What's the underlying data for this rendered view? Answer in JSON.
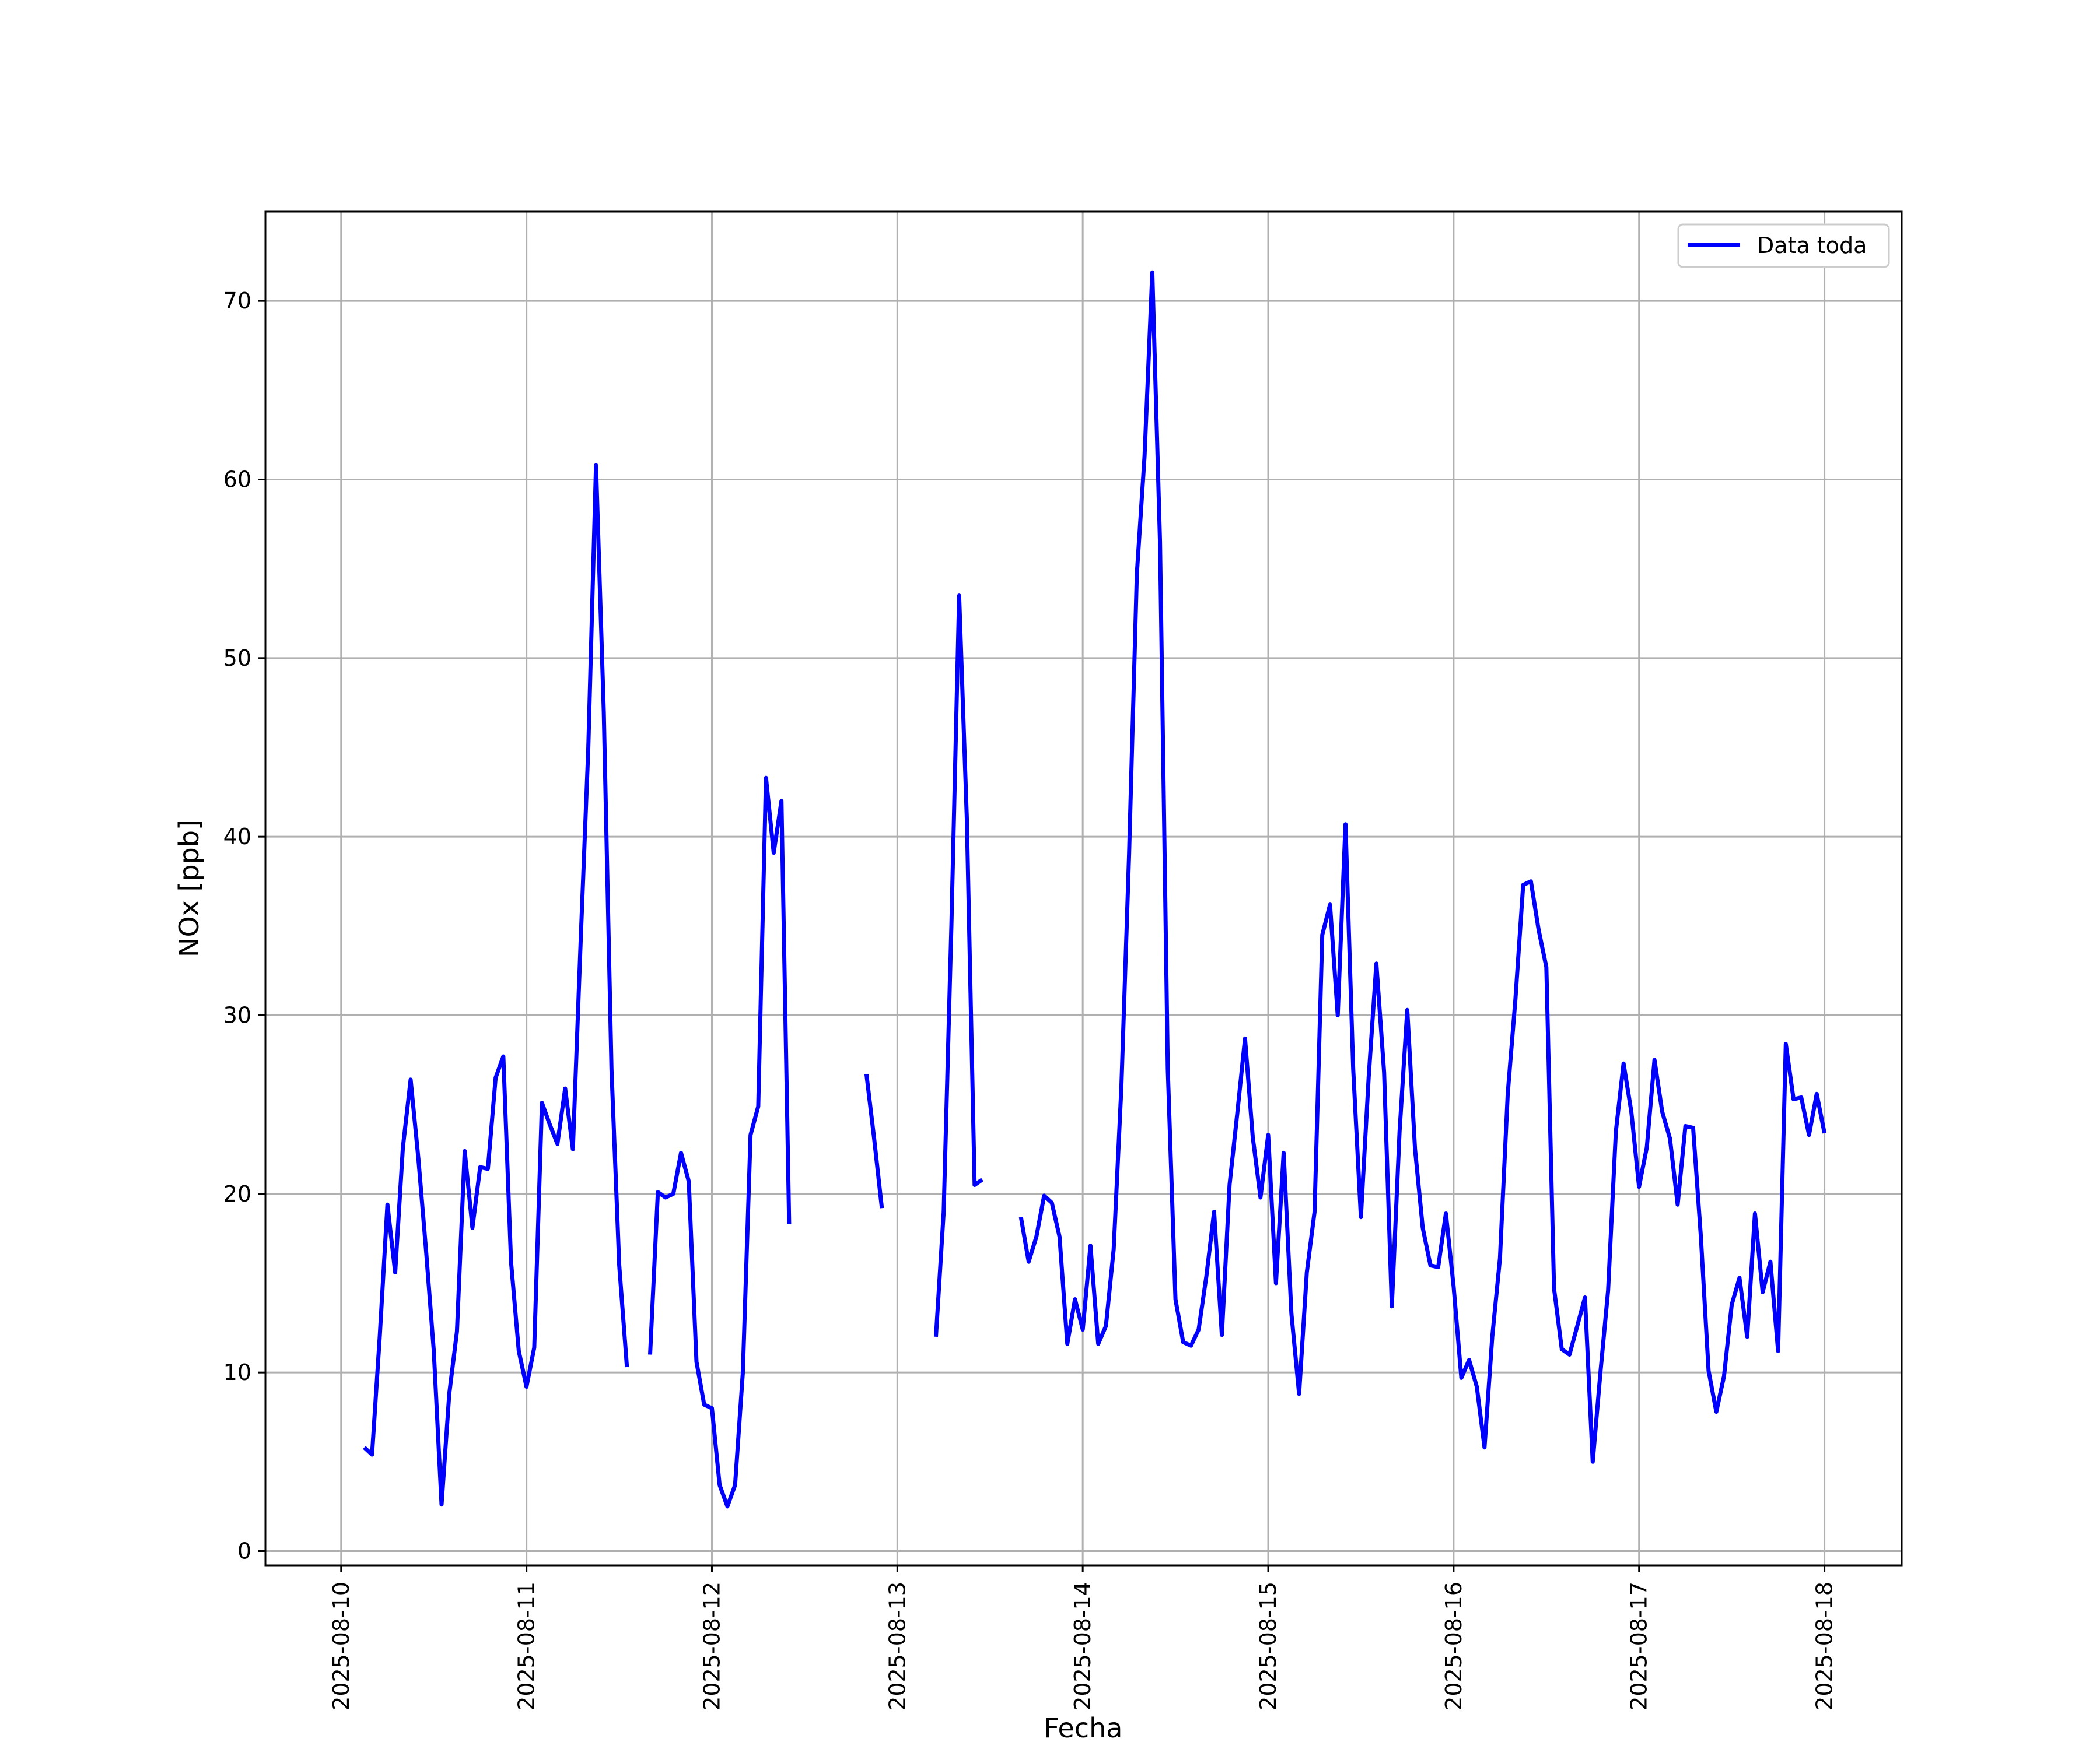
{
  "chart_data": {
    "type": "line",
    "xlabel": "Fecha",
    "ylabel": "NOx [ppb]",
    "ylim": [
      -0.8,
      75
    ],
    "xlim": [
      "2025-08-09T14:12",
      "2025-08-18T10:00"
    ],
    "grid": true,
    "legend_position": "top-right",
    "line_color": "#0000ff",
    "x_ticks": [
      "2025-08-10",
      "2025-08-11",
      "2025-08-12",
      "2025-08-13",
      "2025-08-14",
      "2025-08-15",
      "2025-08-16",
      "2025-08-17",
      "2025-08-18"
    ],
    "y_ticks": [
      0,
      10,
      20,
      30,
      40,
      50,
      60,
      70
    ],
    "series": [
      {
        "name": "Data toda",
        "points": [
          [
            "2025-08-10T03:00",
            5.8
          ],
          [
            "2025-08-10T04:00",
            5.4
          ],
          [
            "2025-08-10T05:00",
            12.0
          ],
          [
            "2025-08-10T06:00",
            19.4
          ],
          [
            "2025-08-10T07:00",
            15.6
          ],
          [
            "2025-08-10T08:00",
            22.6
          ],
          [
            "2025-08-10T09:00",
            26.4
          ],
          [
            "2025-08-10T10:00",
            22.0
          ],
          [
            "2025-08-10T11:00",
            16.8
          ],
          [
            "2025-08-10T12:00",
            11.2
          ],
          [
            "2025-08-10T13:00",
            2.6
          ],
          [
            "2025-08-10T14:00",
            8.8
          ],
          [
            "2025-08-10T15:00",
            12.3
          ],
          [
            "2025-08-10T16:00",
            22.4
          ],
          [
            "2025-08-10T17:00",
            18.1
          ],
          [
            "2025-08-10T18:00",
            21.5
          ],
          [
            "2025-08-10T19:00",
            21.4
          ],
          [
            "2025-08-10T20:00",
            26.5
          ],
          [
            "2025-08-10T21:00",
            27.7
          ],
          [
            "2025-08-10T22:00",
            16.2
          ],
          [
            "2025-08-10T23:00",
            11.2
          ],
          [
            "2025-08-11T00:00",
            9.2
          ],
          [
            "2025-08-11T01:00",
            11.4
          ],
          [
            "2025-08-11T02:00",
            25.1
          ],
          [
            "2025-08-11T03:00",
            23.9
          ],
          [
            "2025-08-11T04:00",
            22.8
          ],
          [
            "2025-08-11T05:00",
            25.9
          ],
          [
            "2025-08-11T06:00",
            22.5
          ],
          [
            "2025-08-11T07:00",
            34.0
          ],
          [
            "2025-08-11T08:00",
            45.0
          ],
          [
            "2025-08-11T09:00",
            60.8
          ],
          [
            "2025-08-11T10:00",
            47.0
          ],
          [
            "2025-08-11T11:00",
            27.0
          ],
          [
            "2025-08-11T12:00",
            16.0
          ],
          [
            "2025-08-11T13:00",
            10.3
          ],
          null,
          [
            "2025-08-11T16:00",
            11.0
          ],
          [
            "2025-08-11T17:00",
            20.1
          ],
          [
            "2025-08-11T18:00",
            19.8
          ],
          [
            "2025-08-11T19:00",
            20.0
          ],
          [
            "2025-08-11T20:00",
            22.3
          ],
          [
            "2025-08-11T21:00",
            20.7
          ],
          [
            "2025-08-11T22:00",
            10.6
          ],
          [
            "2025-08-11T23:00",
            8.2
          ],
          [
            "2025-08-12T00:00",
            8.0
          ],
          [
            "2025-08-12T01:00",
            3.7
          ],
          [
            "2025-08-12T02:00",
            2.5
          ],
          [
            "2025-08-12T03:00",
            3.7
          ],
          [
            "2025-08-12T04:00",
            10.0
          ],
          [
            "2025-08-12T05:00",
            23.3
          ],
          [
            "2025-08-12T06:00",
            24.9
          ],
          [
            "2025-08-12T07:00",
            43.3
          ],
          [
            "2025-08-12T08:00",
            39.1
          ],
          [
            "2025-08-12T09:00",
            42.0
          ],
          [
            "2025-08-12T10:00",
            18.3
          ],
          null,
          [
            "2025-08-12T20:00",
            26.7
          ],
          [
            "2025-08-12T21:00",
            23.1
          ],
          [
            "2025-08-12T22:00",
            19.2
          ],
          null,
          [
            "2025-08-13T05:00",
            12.0
          ],
          [
            "2025-08-13T06:00",
            19.0
          ],
          [
            "2025-08-13T07:00",
            35.0
          ],
          [
            "2025-08-13T08:00",
            53.5
          ],
          [
            "2025-08-13T09:00",
            41.0
          ],
          [
            "2025-08-13T10:00",
            20.5
          ],
          [
            "2025-08-13T11:00",
            20.8
          ],
          null,
          [
            "2025-08-13T16:00",
            18.7
          ],
          [
            "2025-08-13T17:00",
            16.2
          ],
          [
            "2025-08-13T18:00",
            17.6
          ],
          [
            "2025-08-13T19:00",
            19.9
          ],
          [
            "2025-08-13T20:00",
            19.5
          ],
          [
            "2025-08-13T21:00",
            17.6
          ],
          [
            "2025-08-13T22:00",
            11.6
          ],
          [
            "2025-08-13T23:00",
            14.1
          ],
          [
            "2025-08-14T00:00",
            12.4
          ],
          [
            "2025-08-14T01:00",
            17.1
          ],
          [
            "2025-08-14T02:00",
            11.6
          ],
          [
            "2025-08-14T03:00",
            12.6
          ],
          [
            "2025-08-14T04:00",
            16.9
          ],
          [
            "2025-08-14T05:00",
            26.0
          ],
          [
            "2025-08-14T06:00",
            39.0
          ],
          [
            "2025-08-14T07:00",
            54.7
          ],
          [
            "2025-08-14T08:00",
            61.3
          ],
          [
            "2025-08-14T09:00",
            71.6
          ],
          [
            "2025-08-14T10:00",
            56.5
          ],
          [
            "2025-08-14T11:00",
            27.0
          ],
          [
            "2025-08-14T12:00",
            14.1
          ],
          [
            "2025-08-14T13:00",
            11.7
          ],
          [
            "2025-08-14T14:00",
            11.5
          ],
          [
            "2025-08-14T15:00",
            12.4
          ],
          [
            "2025-08-14T16:00",
            15.4
          ],
          [
            "2025-08-14T17:00",
            19.0
          ],
          [
            "2025-08-14T18:00",
            12.1
          ],
          [
            "2025-08-14T19:00",
            20.5
          ],
          [
            "2025-08-14T20:00",
            24.5
          ],
          [
            "2025-08-14T21:00",
            28.7
          ],
          [
            "2025-08-14T22:00",
            23.2
          ],
          [
            "2025-08-14T23:00",
            19.8
          ],
          [
            "2025-08-15T00:00",
            23.3
          ],
          [
            "2025-08-15T01:00",
            15.0
          ],
          [
            "2025-08-15T02:00",
            22.3
          ],
          [
            "2025-08-15T03:00",
            13.3
          ],
          [
            "2025-08-15T04:00",
            8.8
          ],
          [
            "2025-08-15T05:00",
            15.6
          ],
          [
            "2025-08-15T06:00",
            19.0
          ],
          [
            "2025-08-15T07:00",
            34.5
          ],
          [
            "2025-08-15T08:00",
            36.2
          ],
          [
            "2025-08-15T09:00",
            30.0
          ],
          [
            "2025-08-15T10:00",
            40.7
          ],
          [
            "2025-08-15T11:00",
            27.0
          ],
          [
            "2025-08-15T12:00",
            18.7
          ],
          [
            "2025-08-15T13:00",
            26.5
          ],
          [
            "2025-08-15T14:00",
            32.9
          ],
          [
            "2025-08-15T15:00",
            26.8
          ],
          [
            "2025-08-15T16:00",
            13.7
          ],
          [
            "2025-08-15T17:00",
            23.5
          ],
          [
            "2025-08-15T18:00",
            30.3
          ],
          [
            "2025-08-15T19:00",
            22.5
          ],
          [
            "2025-08-15T20:00",
            18.1
          ],
          [
            "2025-08-15T21:00",
            16.0
          ],
          [
            "2025-08-15T22:00",
            15.9
          ],
          [
            "2025-08-15T23:00",
            18.9
          ],
          [
            "2025-08-16T00:00",
            14.8
          ],
          [
            "2025-08-16T01:00",
            9.7
          ],
          [
            "2025-08-16T02:00",
            10.7
          ],
          [
            "2025-08-16T03:00",
            9.2
          ],
          [
            "2025-08-16T04:00",
            5.8
          ],
          [
            "2025-08-16T05:00",
            12.0
          ],
          [
            "2025-08-16T06:00",
            16.4
          ],
          [
            "2025-08-16T07:00",
            25.6
          ],
          [
            "2025-08-16T08:00",
            30.9
          ],
          [
            "2025-08-16T09:00",
            37.3
          ],
          [
            "2025-08-16T10:00",
            37.5
          ],
          [
            "2025-08-16T11:00",
            34.8
          ],
          [
            "2025-08-16T12:00",
            32.7
          ],
          [
            "2025-08-16T13:00",
            14.7
          ],
          [
            "2025-08-16T14:00",
            11.3
          ],
          [
            "2025-08-16T15:00",
            11.0
          ],
          [
            "2025-08-16T16:00",
            12.6
          ],
          [
            "2025-08-16T17:00",
            14.2
          ],
          [
            "2025-08-16T18:00",
            5.0
          ],
          [
            "2025-08-16T19:00",
            10.0
          ],
          [
            "2025-08-16T20:00",
            14.6
          ],
          [
            "2025-08-16T21:00",
            23.5
          ],
          [
            "2025-08-16T22:00",
            27.3
          ],
          [
            "2025-08-16T23:00",
            24.6
          ],
          [
            "2025-08-17T00:00",
            20.4
          ],
          [
            "2025-08-17T01:00",
            22.6
          ],
          [
            "2025-08-17T02:00",
            27.5
          ],
          [
            "2025-08-17T03:00",
            24.6
          ],
          [
            "2025-08-17T04:00",
            23.1
          ],
          [
            "2025-08-17T05:00",
            19.4
          ],
          [
            "2025-08-17T06:00",
            23.8
          ],
          [
            "2025-08-17T07:00",
            23.7
          ],
          [
            "2025-08-17T08:00",
            17.6
          ],
          [
            "2025-08-17T09:00",
            10.1
          ],
          [
            "2025-08-17T10:00",
            7.8
          ],
          [
            "2025-08-17T11:00",
            9.8
          ],
          [
            "2025-08-17T12:00",
            13.8
          ],
          [
            "2025-08-17T13:00",
            15.3
          ],
          [
            "2025-08-17T14:00",
            12.0
          ],
          [
            "2025-08-17T15:00",
            18.9
          ],
          [
            "2025-08-17T16:00",
            14.5
          ],
          [
            "2025-08-17T17:00",
            16.2
          ],
          [
            "2025-08-17T18:00",
            11.2
          ],
          [
            "2025-08-17T19:00",
            28.4
          ],
          [
            "2025-08-17T20:00",
            25.3
          ],
          [
            "2025-08-17T21:00",
            25.4
          ],
          [
            "2025-08-17T22:00",
            23.3
          ],
          [
            "2025-08-17T23:00",
            25.6
          ],
          [
            "2025-08-18T00:00",
            23.4
          ]
        ]
      }
    ]
  }
}
